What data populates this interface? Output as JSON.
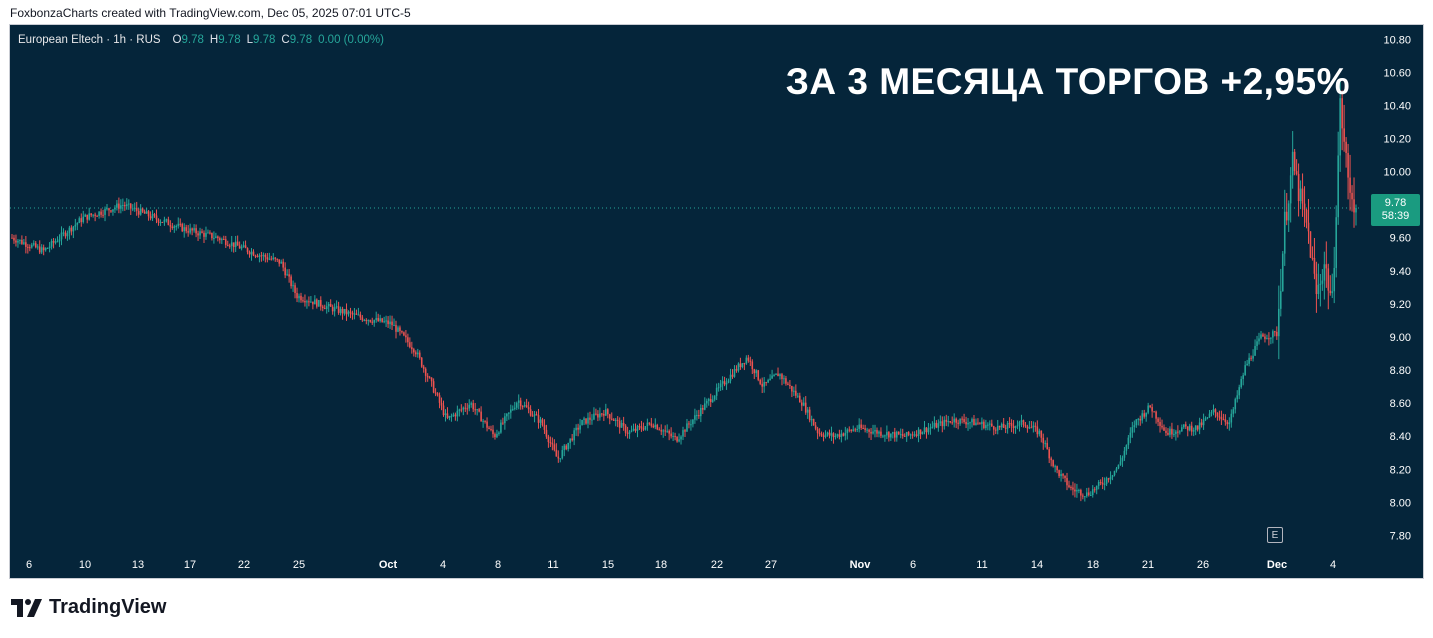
{
  "credit": "FoxbonzaCharts created with TradingView.com, Dec 05, 2025 07:01 UTC-5",
  "legend": {
    "symbol": "European Eltech · 1h · RUS",
    "o_label": "O",
    "o_value": "9.78",
    "h_label": "H",
    "h_value": "9.78",
    "l_label": "L",
    "l_value": "9.78",
    "c_label": "C",
    "c_value": "9.78",
    "change": "0.00 (0.00%)"
  },
  "headline": "ЗА 3 МЕСЯЦА ТОРГОВ +2,95%",
  "price_tag": {
    "price": "9.78",
    "countdown": "58:39"
  },
  "event_marker": "E",
  "brand": {
    "name": "TradingView",
    "logo_icon": "tradingview-logo-icon"
  },
  "colors": {
    "background": "#05253a",
    "up": "#26a69a",
    "down": "#ef5350",
    "axis_text": "#ffffff",
    "price_tag": "#1a9b80"
  },
  "chart_data": {
    "type": "candlestick",
    "instrument": "European Eltech",
    "interval": "1h",
    "exchange": "RUS",
    "y_axis": {
      "ticks": [
        "10.80",
        "10.60",
        "10.40",
        "10.20",
        "10.00",
        "9.60",
        "9.40",
        "9.20",
        "9.00",
        "8.80",
        "8.60",
        "8.40",
        "8.20",
        "8.00",
        "7.80"
      ],
      "ylim": [
        7.7,
        10.85
      ]
    },
    "x_axis": {
      "ticks": [
        "6",
        "10",
        "13",
        "17",
        "22",
        "25",
        "Oct",
        "4",
        "8",
        "11",
        "15",
        "18",
        "22",
        "27",
        "Nov",
        "6",
        "11",
        "14",
        "18",
        "21",
        "26",
        "Dec",
        "4"
      ],
      "bold_ticks": [
        "Oct",
        "Nov",
        "Dec"
      ]
    },
    "last_price": 9.78,
    "price_path": [
      [
        0,
        9.6
      ],
      [
        4,
        9.52
      ],
      [
        9,
        9.72
      ],
      [
        14,
        9.8
      ],
      [
        18,
        9.72
      ],
      [
        22,
        9.65
      ],
      [
        26,
        9.6
      ],
      [
        30,
        9.52
      ],
      [
        34,
        9.45
      ],
      [
        36,
        9.25
      ],
      [
        40,
        9.18
      ],
      [
        44,
        9.12
      ],
      [
        48,
        9.08
      ],
      [
        51,
        8.92
      ],
      [
        53,
        8.72
      ],
      [
        55,
        8.5
      ],
      [
        58,
        8.6
      ],
      [
        61,
        8.4
      ],
      [
        64,
        8.62
      ],
      [
        67,
        8.48
      ],
      [
        69,
        8.26
      ],
      [
        72,
        8.48
      ],
      [
        75,
        8.55
      ],
      [
        78,
        8.42
      ],
      [
        81,
        8.48
      ],
      [
        84,
        8.38
      ],
      [
        87,
        8.55
      ],
      [
        90,
        8.72
      ],
      [
        93,
        8.88
      ],
      [
        95,
        8.7
      ],
      [
        97,
        8.78
      ],
      [
        100,
        8.6
      ],
      [
        102,
        8.42
      ],
      [
        104,
        8.4
      ],
      [
        107,
        8.45
      ],
      [
        110,
        8.42
      ],
      [
        113,
        8.4
      ],
      [
        116,
        8.45
      ],
      [
        119,
        8.5
      ],
      [
        122,
        8.48
      ],
      [
        125,
        8.45
      ],
      [
        128,
        8.48
      ],
      [
        130,
        8.42
      ],
      [
        132,
        8.2
      ],
      [
        134,
        8.08
      ],
      [
        136,
        8.05
      ],
      [
        138,
        8.12
      ],
      [
        140,
        8.22
      ],
      [
        142,
        8.48
      ],
      [
        144,
        8.58
      ],
      [
        146,
        8.42
      ],
      [
        148,
        8.45
      ],
      [
        150,
        8.45
      ],
      [
        152,
        8.55
      ],
      [
        154,
        8.48
      ],
      [
        156,
        8.82
      ],
      [
        158,
        9.0
      ],
      [
        160,
        9.02
      ],
      [
        161,
        9.7
      ],
      [
        162,
        10.05
      ],
      [
        163,
        9.82
      ],
      [
        164,
        9.62
      ],
      [
        165,
        9.25
      ],
      [
        166,
        9.45
      ],
      [
        167,
        9.2
      ],
      [
        168,
        10.4
      ],
      [
        169,
        9.95
      ],
      [
        170,
        9.78
      ]
    ],
    "path_x_units": "hourly bar index (×8); date ticks mark the session boundaries"
  }
}
